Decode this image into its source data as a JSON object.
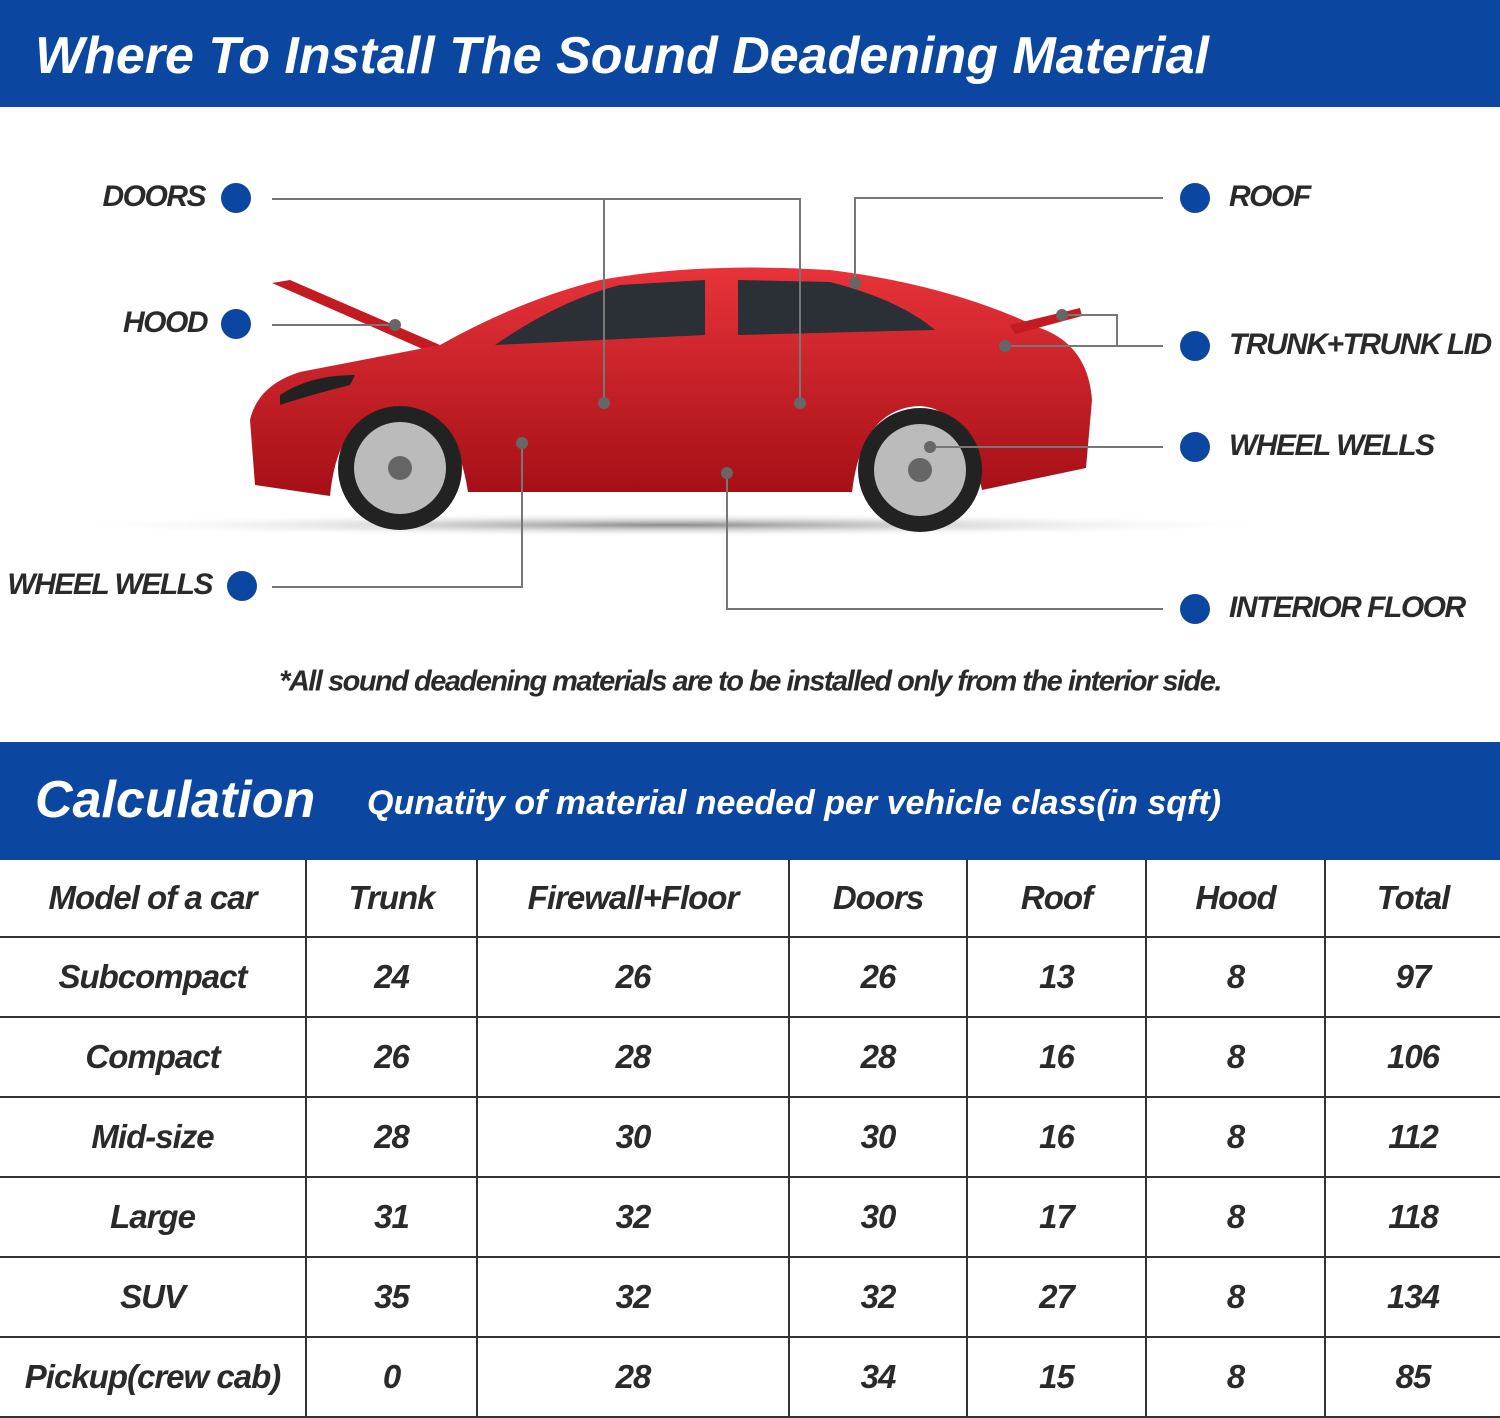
{
  "header": {
    "title": "Where To Install The Sound Deadening Material"
  },
  "diagram": {
    "labels": [
      "DOORS",
      "HOOD",
      "WHEEL WELLS",
      "ROOF",
      "TRUNK+TRUNK LID",
      "WHEEL WELLS",
      "INTERIOR FLOOR"
    ],
    "note": "*All sound deadening materials are to be installed only from the interior side."
  },
  "calculation": {
    "title": "Calculation",
    "subtitle": "Qunatity of material needed per vehicle class(in sqft)"
  },
  "table": {
    "columns": [
      "Model of a car",
      "Trunk",
      "Firewall+Floor",
      "Doors",
      "Roof",
      "Hood",
      "Total"
    ],
    "rows": [
      [
        "Subcompact",
        24,
        26,
        26,
        13,
        8,
        97
      ],
      [
        "Compact",
        26,
        28,
        28,
        16,
        8,
        106
      ],
      [
        "Mid-size",
        28,
        30,
        30,
        16,
        8,
        112
      ],
      [
        "Large",
        31,
        32,
        30,
        17,
        8,
        118
      ],
      [
        "SUV",
        35,
        32,
        32,
        27,
        8,
        134
      ],
      [
        "Pickup(crew cab)",
        0,
        28,
        34,
        15,
        8,
        85
      ]
    ]
  }
}
